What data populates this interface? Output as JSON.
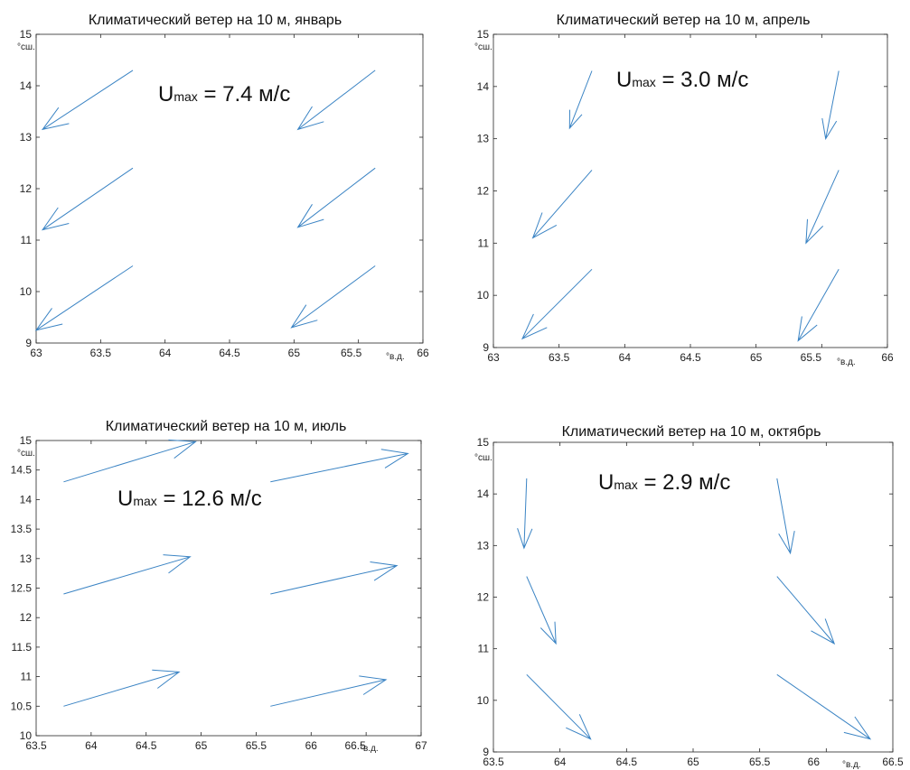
{
  "figure": {
    "arrow_color": "#3b84c4",
    "axis_color": "#262626"
  },
  "chart_data": [
    {
      "type": "quiver",
      "title": "Климатический ветер на 10 м, январь",
      "umax_label": {
        "prefix": "U",
        "sub": "max",
        "value": " = 7.4 м/с"
      },
      "xlim": [
        63,
        66
      ],
      "ylim": [
        9,
        15
      ],
      "xticks": [
        "63",
        "63.5",
        "64",
        "64.5",
        "65",
        "65.5",
        "66"
      ],
      "yticks": [
        "9",
        "10",
        "11",
        "12",
        "13",
        "14",
        "15"
      ],
      "xunit": "°в.д.",
      "yunit": "°сш.",
      "vectors": [
        {
          "x": 63.75,
          "y": 14.3,
          "u": -0.7,
          "v": -1.15
        },
        {
          "x": 63.75,
          "y": 12.4,
          "u": -0.7,
          "v": -1.2
        },
        {
          "x": 63.75,
          "y": 10.5,
          "u": -0.75,
          "v": -1.25
        },
        {
          "x": 65.63,
          "y": 14.3,
          "u": -0.6,
          "v": -1.15
        },
        {
          "x": 65.63,
          "y": 12.4,
          "u": -0.6,
          "v": -1.15
        },
        {
          "x": 65.63,
          "y": 10.5,
          "u": -0.65,
          "v": -1.2
        }
      ]
    },
    {
      "type": "quiver",
      "title": "Климатический ветер на 10 м, апрель",
      "umax_label": {
        "prefix": "U",
        "sub": "max",
        "value": " = 3.0 м/с"
      },
      "xlim": [
        63,
        66
      ],
      "ylim": [
        9,
        15
      ],
      "xticks": [
        "63",
        "63.5",
        "64",
        "64.5",
        "65",
        "65.5",
        "66"
      ],
      "yticks": [
        "9",
        "10",
        "11",
        "12",
        "13",
        "14",
        "15"
      ],
      "xunit": "°в.д.",
      "yunit": "°сш.",
      "vectors": [
        {
          "x": 63.75,
          "y": 14.3,
          "u": -0.17,
          "v": -1.1
        },
        {
          "x": 63.75,
          "y": 12.4,
          "u": -0.45,
          "v": -1.3
        },
        {
          "x": 63.75,
          "y": 10.5,
          "u": -0.53,
          "v": -1.33
        },
        {
          "x": 65.63,
          "y": 14.3,
          "u": -0.1,
          "v": -1.3
        },
        {
          "x": 65.63,
          "y": 12.4,
          "u": -0.25,
          "v": -1.4
        },
        {
          "x": 65.63,
          "y": 10.5,
          "u": -0.31,
          "v": -1.37
        }
      ]
    },
    {
      "type": "quiver",
      "title": "Климатический ветер на 10 м, июль",
      "umax_label": {
        "prefix": "U",
        "sub": "max",
        "value": " = 12.6 м/с"
      },
      "xlim": [
        63.5,
        67
      ],
      "ylim": [
        10,
        15
      ],
      "xticks": [
        "63.5",
        "64",
        "64.5",
        "65",
        "65.5",
        "66",
        "66.5",
        "67"
      ],
      "yticks": [
        "10",
        "10.5",
        "11",
        "11.5",
        "12",
        "12.5",
        "13",
        "13.5",
        "14",
        "14.5",
        "15"
      ],
      "xunit": "°в.д.",
      "yunit": "°сш.",
      "vectors": [
        {
          "x": 63.75,
          "y": 14.3,
          "u": 1.2,
          "v": 0.68
        },
        {
          "x": 63.75,
          "y": 12.4,
          "u": 1.15,
          "v": 0.63
        },
        {
          "x": 63.75,
          "y": 10.5,
          "u": 1.05,
          "v": 0.58
        },
        {
          "x": 65.63,
          "y": 14.3,
          "u": 1.25,
          "v": 0.48
        },
        {
          "x": 65.63,
          "y": 12.4,
          "u": 1.15,
          "v": 0.48
        },
        {
          "x": 65.63,
          "y": 10.5,
          "u": 1.05,
          "v": 0.45
        }
      ]
    },
    {
      "type": "quiver",
      "title": "Климатический ветер на 10 м, октябрь",
      "umax_label": {
        "prefix": "U",
        "sub": "max",
        "value": " = 2.9 м/с"
      },
      "xlim": [
        63.5,
        66.5
      ],
      "ylim": [
        9,
        15
      ],
      "xticks": [
        "63.5",
        "64",
        "64.5",
        "65",
        "65.5",
        "66",
        "66.5"
      ],
      "yticks": [
        "9",
        "10",
        "11",
        "12",
        "13",
        "14",
        "15"
      ],
      "xunit": "°в.д.",
      "yunit": "°сш.",
      "vectors": [
        {
          "x": 63.75,
          "y": 14.3,
          "u": -0.02,
          "v": -1.35
        },
        {
          "x": 63.75,
          "y": 12.4,
          "u": 0.22,
          "v": -1.3
        },
        {
          "x": 63.75,
          "y": 10.5,
          "u": 0.48,
          "v": -1.25
        },
        {
          "x": 65.63,
          "y": 14.3,
          "u": 0.1,
          "v": -1.45
        },
        {
          "x": 65.63,
          "y": 12.4,
          "u": 0.43,
          "v": -1.3
        },
        {
          "x": 65.63,
          "y": 10.5,
          "u": 0.7,
          "v": -1.25
        }
      ]
    }
  ]
}
